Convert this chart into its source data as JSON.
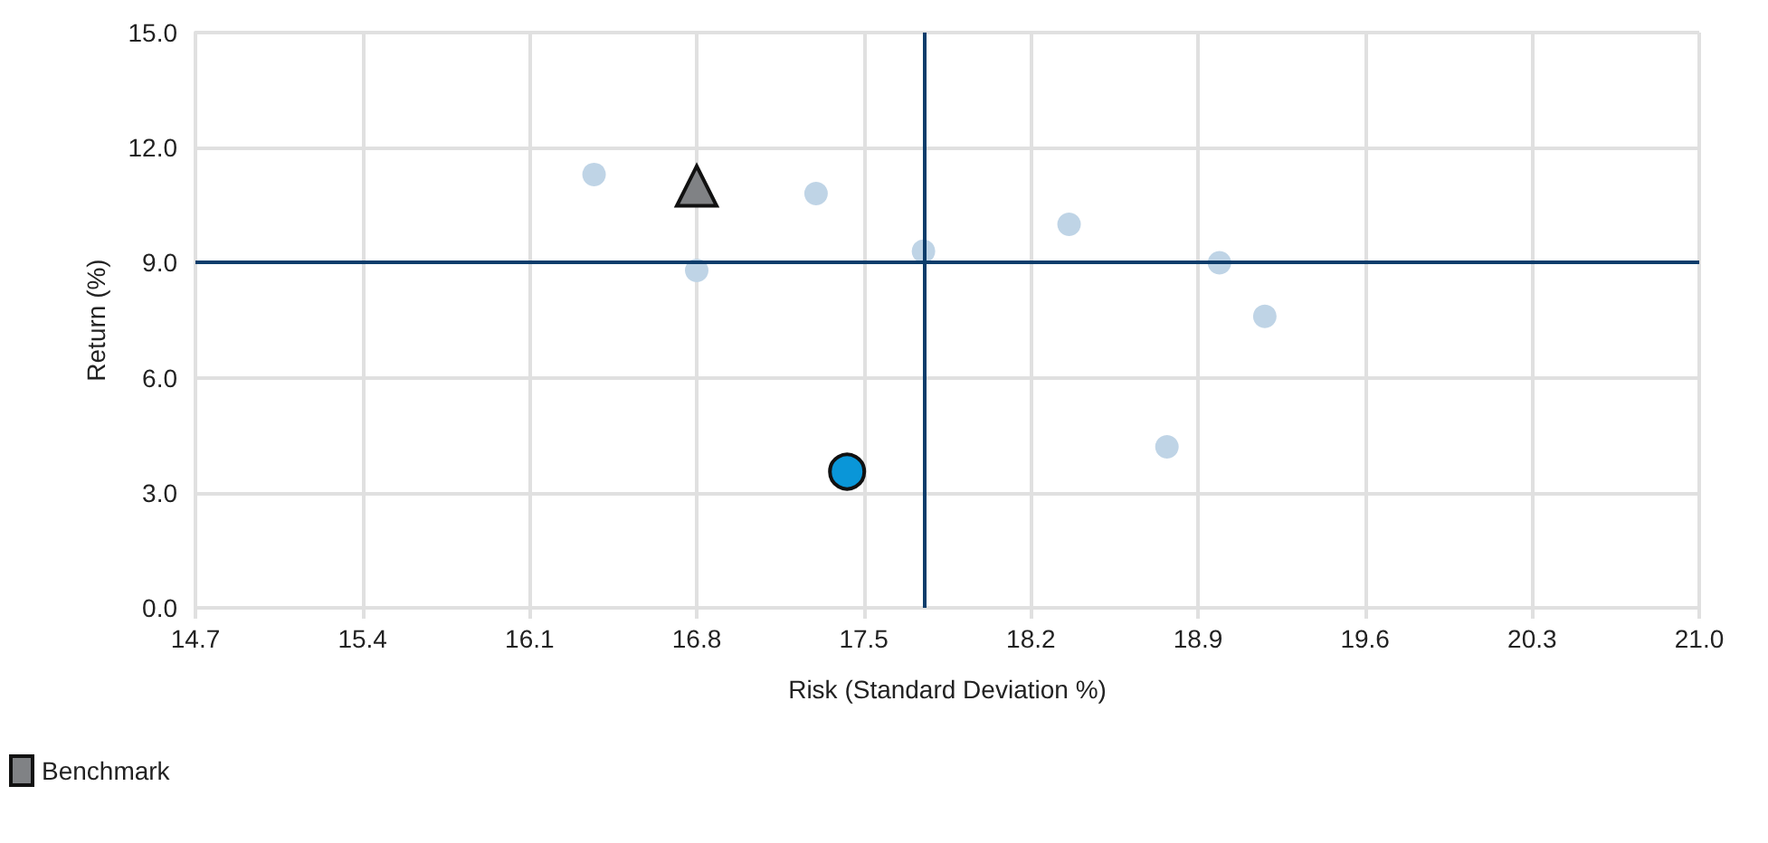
{
  "chart_data": {
    "type": "scatter",
    "xlabel": "Risk (Standard Deviation %)",
    "ylabel": "Return (%)",
    "xlim": [
      14.7,
      21.0
    ],
    "xticks": [
      14.7,
      15.4,
      16.1,
      16.8,
      17.5,
      18.2,
      18.9,
      19.6,
      20.3,
      {
        "value": 21,
        "label": "21.0"
      }
    ],
    "ylim": [
      0,
      15
    ],
    "yticks": [
      {
        "value": 0,
        "label": "0.0"
      },
      {
        "value": 3,
        "label": "3.0"
      },
      {
        "value": 6,
        "label": "6.0"
      },
      {
        "value": 9,
        "label": "9.0"
      },
      {
        "value": 12,
        "label": "12.0"
      },
      {
        "value": 15,
        "label": "15.0"
      }
    ],
    "grid": true,
    "legend": "bottom left",
    "ref_lines": [
      {
        "axis": "x",
        "value": 17.75,
        "color": "#0d3d6b"
      },
      {
        "axis": "y",
        "value": 9.0,
        "color": "#0d3d6b"
      }
    ],
    "series": [
      {
        "color": "#bfd4e6",
        "marker": "circle",
        "x": [
          16.37,
          16.8,
          17.3,
          17.75,
          18.36,
          18.99,
          19.18,
          18.77
        ],
        "values": [
          11.3,
          8.8,
          10.8,
          9.3,
          10.0,
          9.0,
          7.6,
          4.2
        ]
      },
      {
        "name": "Benchmark",
        "color": "#808285",
        "marker": "triangle",
        "x": [
          16.8
        ],
        "values": [
          11.0
        ]
      },
      {
        "color": "#0a96d8",
        "marker": "circle",
        "x": [
          17.43
        ],
        "values": [
          3.55
        ]
      }
    ]
  }
}
